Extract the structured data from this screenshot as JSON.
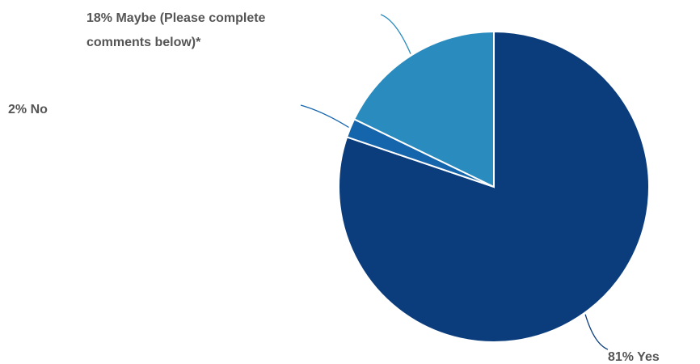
{
  "chart_data": {
    "type": "pie",
    "slices": [
      {
        "label": "Yes",
        "value": 81,
        "display": "81% Yes",
        "color": "#0b3d7d"
      },
      {
        "label": "No",
        "value": 2,
        "display": "2% No",
        "color": "#1565ad"
      },
      {
        "label": "Maybe (Please complete comments below)*",
        "value": 18,
        "display_lines": [
          "18% Maybe (Please complete",
          "comments below)*"
        ],
        "color": "#2a8bbf"
      }
    ]
  }
}
